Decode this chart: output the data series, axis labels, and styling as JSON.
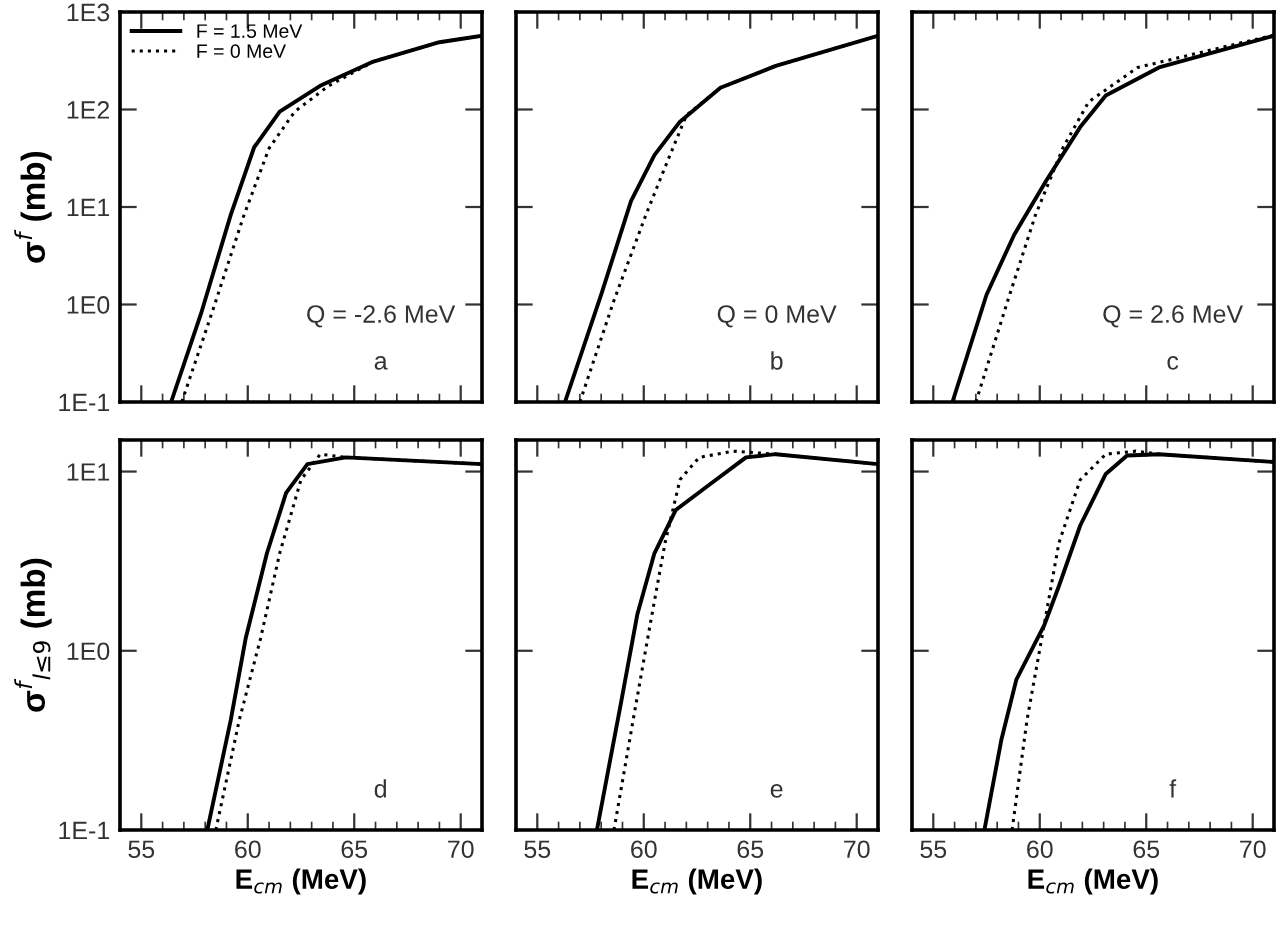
{
  "chart_data": [
    {
      "type": "line",
      "ylabel": "σ$^{f}$ (mb)",
      "annotations": [
        "Q = -2.6 MeV",
        "a"
      ],
      "log": "y",
      "xlim": [
        54,
        71
      ],
      "xticks": [
        {
          "value": 55,
          "label": null
        },
        {
          "value": 60,
          "label": null
        },
        {
          "value": 65,
          "label": null
        },
        {
          "value": 70,
          "label": null
        }
      ],
      "ylim": [
        0.1,
        1000
      ],
      "yticks": [
        {
          "value": 0.1,
          "label": "1E-1"
        },
        {
          "value": 1,
          "label": "1E0"
        },
        {
          "value": 10,
          "label": "1E1"
        },
        {
          "value": 100,
          "label": "1E2"
        },
        {
          "value": 1000,
          "label": "1E3"
        }
      ],
      "tick_labels": "y",
      "legend": "top left",
      "grid": false,
      "marker": "none",
      "series": [
        {
          "name": "F = 1.5 MeV",
          "color": "#000000",
          "line_style": "solid",
          "x": [
            56.4,
            57.8,
            59.2,
            60.3,
            61.5,
            63.4,
            65.9,
            69.0,
            71
          ],
          "values": [
            0.1,
            0.8,
            8.3,
            41,
            95,
            175,
            310,
            490,
            570
          ]
        },
        {
          "name": "F = 0 MeV",
          "color": "#000000",
          "line_style": "dotted",
          "x": [
            56.9,
            58.3,
            59.8,
            61.0,
            62.2,
            63.8,
            65.9,
            69.0,
            71
          ],
          "values": [
            0.1,
            0.8,
            8,
            40,
            95,
            175,
            310,
            490,
            570
          ]
        }
      ]
    },
    {
      "type": "line",
      "annotations": [
        "Q = 0 MeV",
        "b"
      ],
      "log": "y",
      "xlim": [
        54,
        71
      ],
      "xticks": [
        {
          "value": 55,
          "label": null
        },
        {
          "value": 60,
          "label": null
        },
        {
          "value": 65,
          "label": null
        },
        {
          "value": 70,
          "label": null
        }
      ],
      "ylim": [
        0.1,
        1000
      ],
      "yticks": [
        {
          "value": 0.1,
          "label": null
        },
        {
          "value": 1,
          "label": null
        },
        {
          "value": 10,
          "label": null
        },
        {
          "value": 100,
          "label": null
        },
        {
          "value": 1000,
          "label": null
        }
      ],
      "tick_labels": false,
      "grid": false,
      "marker": "none",
      "series": [
        {
          "color": "#000000",
          "line_style": "solid",
          "x": [
            56.3,
            58.0,
            59.4,
            60.5,
            61.7,
            63.6,
            66.2,
            71
          ],
          "values": [
            0.1,
            1.26,
            11.5,
            34,
            75,
            167,
            280,
            570
          ]
        },
        {
          "color": "#000000",
          "line_style": "dotted",
          "x": [
            57.0,
            58.6,
            60.1,
            61.1,
            62.0,
            63.6,
            66.2,
            71
          ],
          "values": [
            0.1,
            1.1,
            8.3,
            29,
            87,
            167,
            280,
            570
          ]
        }
      ]
    },
    {
      "type": "line",
      "annotations": [
        "Q = 2.6 MeV",
        "c"
      ],
      "log": "y",
      "xlim": [
        54,
        71
      ],
      "xticks": [
        {
          "value": 55,
          "label": null
        },
        {
          "value": 60,
          "label": null
        },
        {
          "value": 65,
          "label": null
        },
        {
          "value": 70,
          "label": null
        }
      ],
      "ylim": [
        0.1,
        1000
      ],
      "yticks": [
        {
          "value": 0.1,
          "label": null
        },
        {
          "value": 1,
          "label": null
        },
        {
          "value": 10,
          "label": null
        },
        {
          "value": 100,
          "label": null
        },
        {
          "value": 1000,
          "label": null
        }
      ],
      "tick_labels": false,
      "grid": false,
      "marker": "none",
      "series": [
        {
          "color": "#000000",
          "line_style": "solid",
          "x": [
            55.9,
            57.5,
            58.8,
            60.3,
            61.9,
            63.1,
            65.6,
            71
          ],
          "values": [
            0.1,
            1.26,
            5.2,
            18.6,
            66,
            139,
            270,
            570
          ]
        },
        {
          "color": "#000000",
          "line_style": "dotted",
          "x": [
            57.0,
            58.5,
            59.8,
            61.1,
            62.3,
            64.6,
            71
          ],
          "values": [
            0.1,
            1.1,
            8.3,
            41,
            120,
            270,
            580
          ]
        }
      ]
    },
    {
      "type": "line",
      "xlabel": "E$_{cm}$ (MeV)",
      "ylabel": "σ$^{f}$$_{l≤9}$ (mb)",
      "annotations": [
        "d"
      ],
      "log": "y",
      "xlim": [
        54,
        71
      ],
      "xticks": [
        55,
        60,
        65,
        70
      ],
      "ylim": [
        0.1,
        15
      ],
      "yticks": [
        {
          "value": 0.1,
          "label": "1E-1"
        },
        {
          "value": 1,
          "label": "1E0"
        },
        {
          "value": 10,
          "label": "1E1"
        }
      ],
      "grid": false,
      "marker": "none",
      "series": [
        {
          "color": "#000000",
          "line_style": "solid",
          "x": [
            58.1,
            59.2,
            59.9,
            60.9,
            61.8,
            62.8,
            64.6,
            71
          ],
          "values": [
            0.1,
            0.41,
            1.17,
            3.5,
            7.6,
            11,
            12,
            11
          ]
        },
        {
          "color": "#000000",
          "line_style": "dotted",
          "x": [
            58.5,
            59.6,
            60.6,
            61.5,
            62.5,
            63.4,
            64.6,
            71
          ],
          "values": [
            0.1,
            0.41,
            1.17,
            3.5,
            9,
            12.5,
            12,
            11
          ]
        }
      ]
    },
    {
      "type": "line",
      "xlabel": "E$_{cm}$ (MeV)",
      "annotations": [
        "e"
      ],
      "log": "y",
      "xlim": [
        54,
        71
      ],
      "xticks": [
        55,
        60,
        65,
        70
      ],
      "ylim": [
        0.1,
        15
      ],
      "yticks": [
        {
          "value": 0.1,
          "label": null
        },
        {
          "value": 1,
          "label": null
        },
        {
          "value": 10,
          "label": null
        }
      ],
      "tick_labels": "x",
      "grid": false,
      "marker": "none",
      "series": [
        {
          "color": "#000000",
          "line_style": "solid",
          "x": [
            57.8,
            58.9,
            59.7,
            60.5,
            61.5,
            63.0,
            64.8,
            66.2,
            71
          ],
          "values": [
            0.1,
            0.49,
            1.6,
            3.5,
            6.1,
            8.3,
            12,
            12.5,
            11
          ]
        },
        {
          "color": "#000000",
          "line_style": "dotted",
          "x": [
            58.6,
            59.5,
            60.3,
            61.0,
            61.7,
            62.6,
            64.2,
            66.2,
            71
          ],
          "values": [
            0.1,
            0.41,
            1.4,
            4,
            9,
            12,
            13,
            12.5,
            11
          ]
        }
      ]
    },
    {
      "type": "line",
      "xlabel": "E$_{cm}$ (MeV)",
      "annotations": [
        "f"
      ],
      "log": "y",
      "xlim": [
        54,
        71
      ],
      "xticks": [
        55,
        60,
        65,
        70
      ],
      "ylim": [
        0.1,
        15
      ],
      "yticks": [
        {
          "value": 0.1,
          "label": null
        },
        {
          "value": 1,
          "label": null
        },
        {
          "value": 10,
          "label": null
        }
      ],
      "tick_labels": "x",
      "grid": false,
      "marker": "none",
      "series": [
        {
          "color": "#000000",
          "line_style": "solid",
          "x": [
            57.4,
            58.2,
            58.9,
            60.2,
            60.9,
            61.9,
            63.1,
            64.1,
            65.6,
            71
          ],
          "values": [
            0.1,
            0.32,
            0.69,
            1.38,
            2.3,
            5,
            9.7,
            12.3,
            12.5,
            11.3
          ]
        },
        {
          "color": "#000000",
          "line_style": "dotted",
          "x": [
            58.7,
            59.4,
            60.2,
            60.9,
            61.9,
            63.1,
            64.5,
            65.6,
            71
          ],
          "values": [
            0.1,
            0.41,
            1.38,
            4,
            9,
            12.5,
            13,
            12.5,
            11.3
          ]
        }
      ]
    }
  ]
}
